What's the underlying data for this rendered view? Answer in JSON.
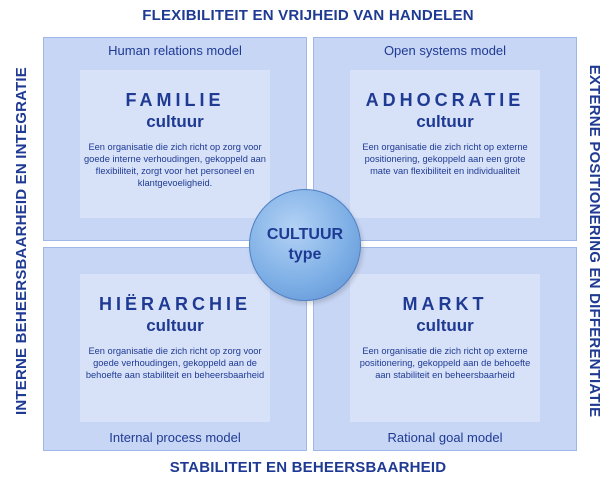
{
  "axes": {
    "top": "FLEXIBILITEIT EN VRIJHEID VAN HANDELEN",
    "bottom": "STABILITEIT EN BEHEERSBAARHEID",
    "left": "INTERNE BEHEERSBAARHEID EN INTEGRATIE",
    "right": "EXTERNE POSITIONERING EN DIFFERENTIATIE"
  },
  "center": {
    "line1": "CULTUUR",
    "line2": "type"
  },
  "quadrants": {
    "top_left": {
      "model": "Human relations model",
      "name": "FAMILIE",
      "sub": "cultuur",
      "description": "Een organisatie die zich richt op zorg voor goede interne verhoudingen, gekoppeld aan flexibiliteit, zorgt voor het personeel en klantgevoeligheid."
    },
    "top_right": {
      "model": "Open systems model",
      "name": "ADHOCRATIE",
      "sub": "cultuur",
      "description": "Een organisatie die zich richt op externe positionering, gekoppeld aan een grote mate van flexibiliteit en individualiteit"
    },
    "bottom_left": {
      "model": "Internal process model",
      "name": "HIËRARCHIE",
      "sub": "cultuur",
      "description": "Een organisatie die zich richt op zorg voor goede verhoudingen, gekoppeld aan de behoefte aan stabiliteit en beheersbaarheid"
    },
    "bottom_right": {
      "model": "Rational goal model",
      "name": "MARKT",
      "sub": "cultuur",
      "description": "Een organisatie die zich richt op externe positionering, gekoppeld aan de behoefte aan stabiliteit en beheersbaarheid"
    }
  }
}
